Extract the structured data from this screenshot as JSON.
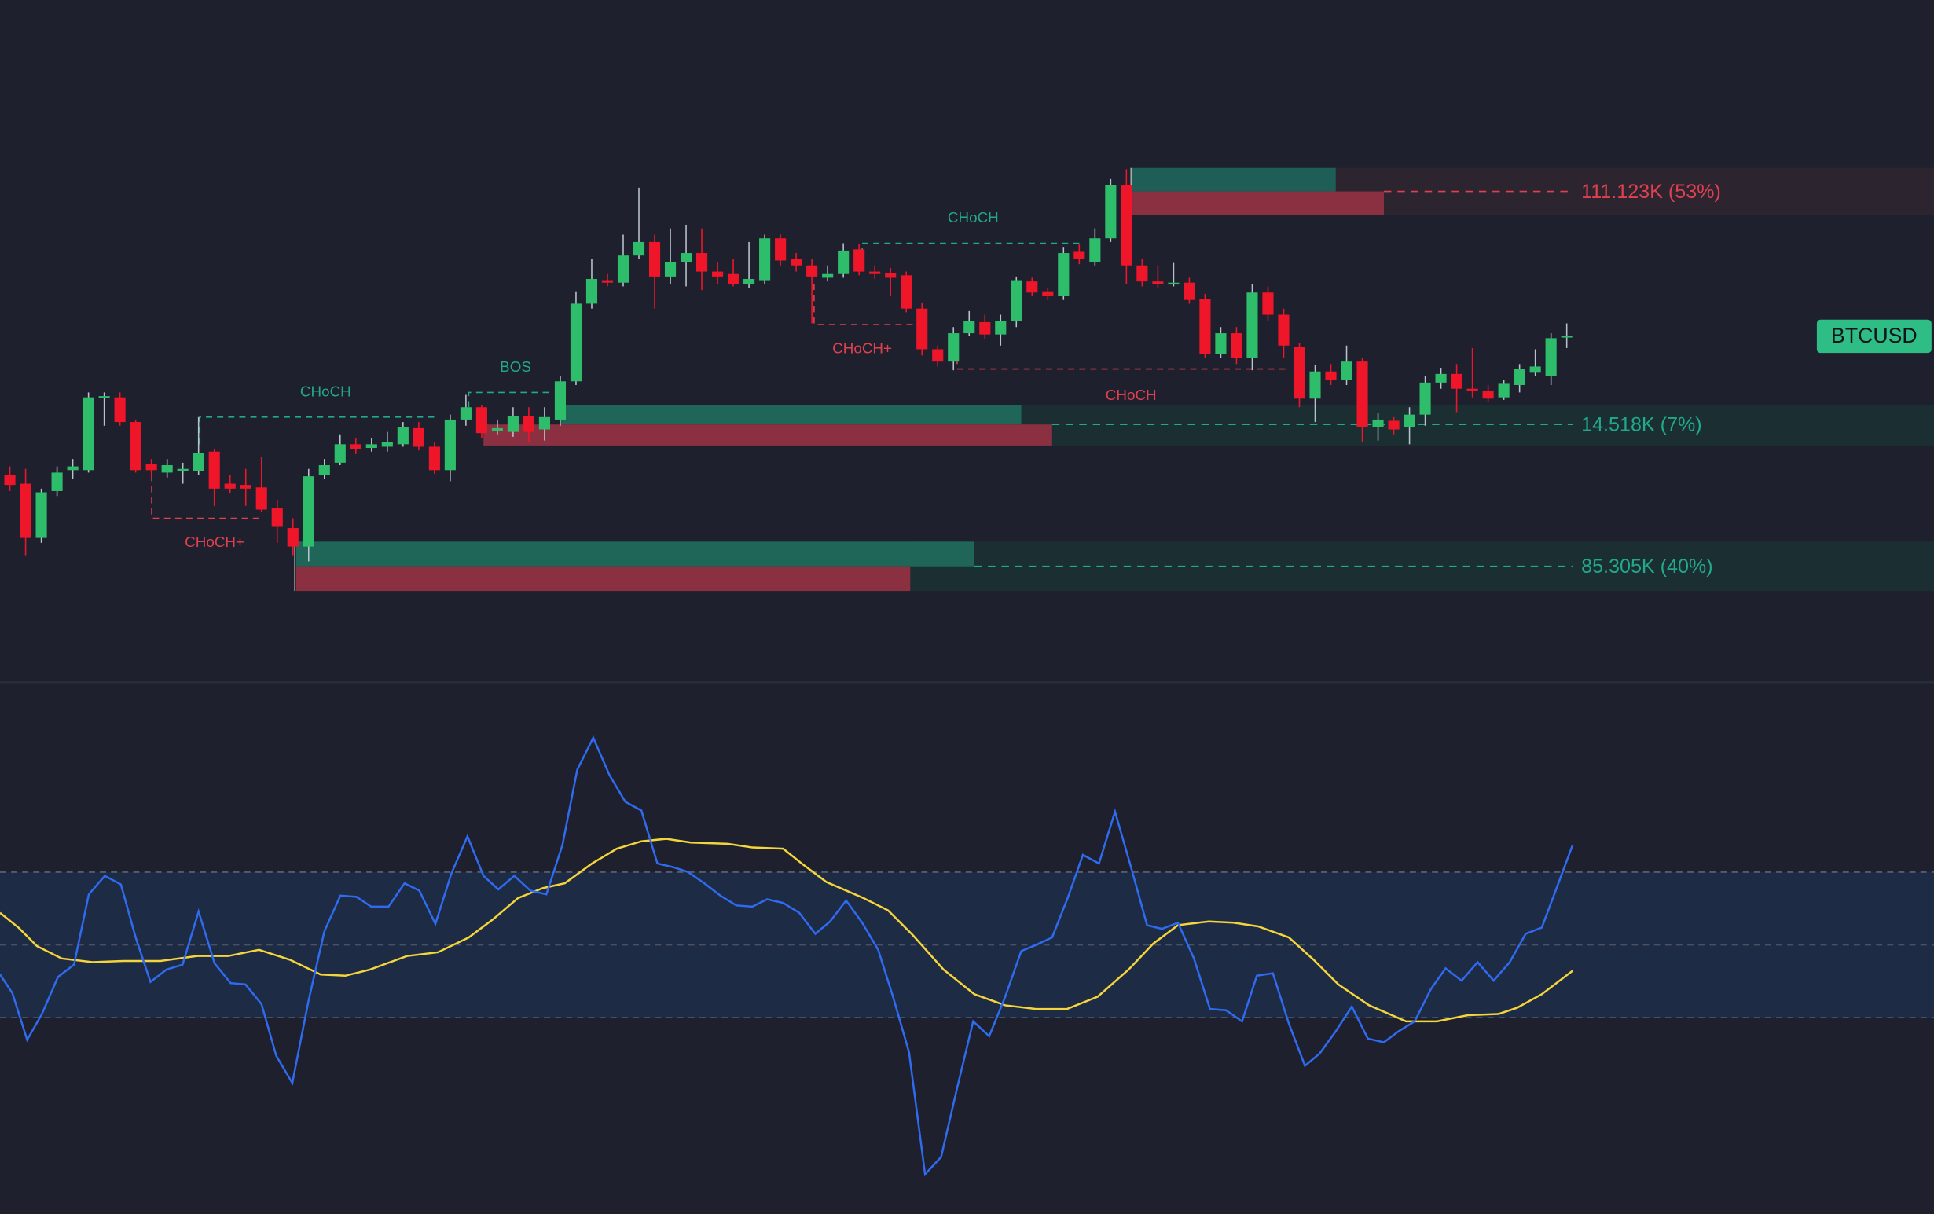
{
  "symbol": "BTCUSD",
  "structure_labels": [
    {
      "text": "CHoCH",
      "side": "bullish"
    },
    {
      "text": "CHoCH+",
      "side": "bearish"
    },
    {
      "text": "BOS",
      "side": "bullish"
    },
    {
      "text": "CHoCH",
      "side": "bullish"
    },
    {
      "text": "CHoCH+",
      "side": "bearish"
    },
    {
      "text": "CHoCH",
      "side": "bearish"
    }
  ],
  "levels": [
    {
      "label": "111.123K (53%)",
      "side": "bearish"
    },
    {
      "label": "14.518K (7%)",
      "side": "bullish"
    },
    {
      "label": "85.305K (40%)",
      "side": "bullish"
    }
  ]
}
